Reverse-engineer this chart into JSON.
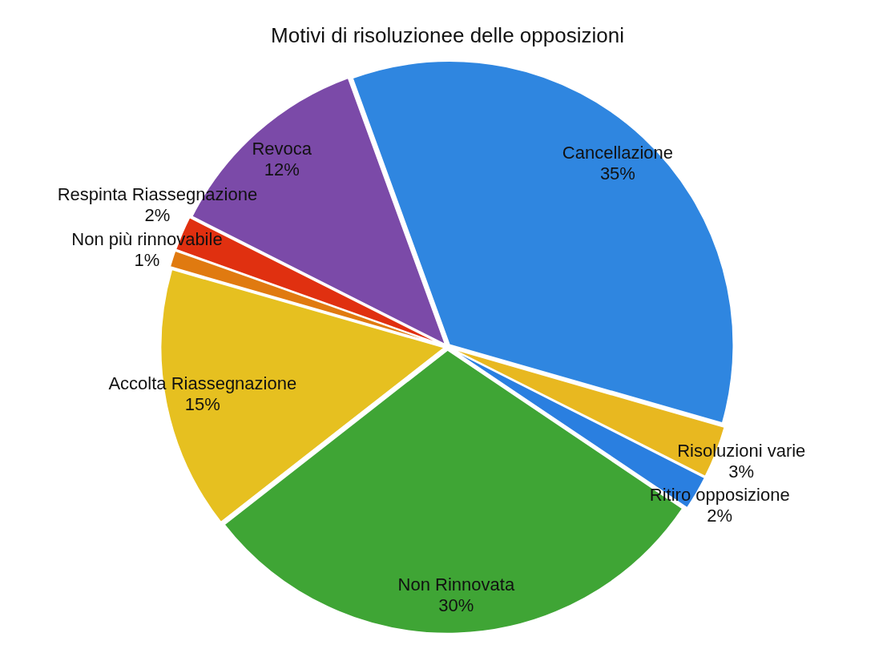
{
  "chart_data": {
    "type": "pie",
    "title": "Motivi di risoluzionee delle opposizioni",
    "categories": [
      "Cancellazione",
      "Risoluzioni varie",
      "Ritiro opposizione",
      "Non Rinnovata",
      "Accolta Riassegnazione",
      "Non più rinnovabile",
      "Respinta Riassegnazione",
      "Revoca"
    ],
    "values": [
      35,
      3,
      2,
      30,
      15,
      1,
      2,
      12
    ],
    "value_labels": [
      "35%",
      "3%",
      "2%",
      "30%",
      "15%",
      "1%",
      "2%",
      "12%"
    ],
    "colors": [
      "#2f86e0",
      "#e8b820",
      "#2a7fe0",
      "#3fa535",
      "#e6c020",
      "#e07a10",
      "#e03010",
      "#7b4aa8"
    ],
    "legend": false
  }
}
